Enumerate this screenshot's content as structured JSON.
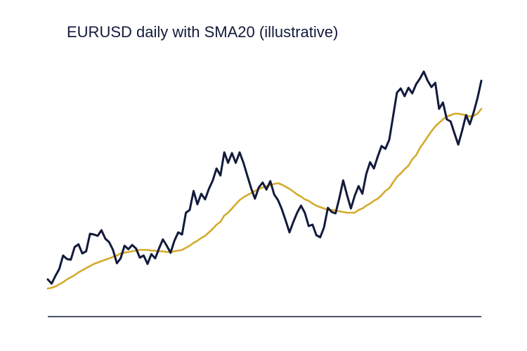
{
  "chart_data": {
    "type": "line",
    "title": "EURUSD daily with SMA20 (illustrative)",
    "ylim": [
      0,
      360
    ],
    "series": [
      {
        "name": "EURUSD",
        "color": "#121a3c",
        "values": [
          53,
          47,
          58,
          68,
          87,
          82,
          81,
          99,
          103,
          90,
          93,
          118,
          117,
          115,
          123,
          111,
          106,
          95,
          76,
          83,
          101,
          96,
          102,
          97,
          84,
          87,
          75,
          89,
          83,
          97,
          110,
          101,
          91,
          108,
          120,
          117,
          148,
          152,
          179,
          160,
          175,
          167,
          182,
          194,
          211,
          201,
          234,
          219,
          233,
          219,
          234,
          219,
          201,
          183,
          168,
          184,
          191,
          181,
          193,
          174,
          166,
          153,
          137,
          120,
          135,
          148,
          158,
          148,
          129,
          131,
          116,
          113,
          127,
          155,
          149,
          147,
          169,
          194,
          173,
          154,
          172,
          186,
          175,
          203,
          220,
          211,
          228,
          243,
          239,
          252,
          285,
          319,
          325,
          314,
          326,
          318,
          331,
          339,
          349,
          336,
          327,
          333,
          296,
          305,
          281,
          278,
          261,
          245,
          265,
          287,
          274,
          291,
          311,
          336
        ]
      },
      {
        "name": "SMA20",
        "color": "#d4aa2c",
        "values": [
          40,
          41,
          43,
          46,
          49,
          53,
          56,
          59,
          63,
          66,
          69,
          72,
          75,
          77,
          79,
          81,
          83,
          85,
          87,
          90,
          91,
          92,
          93,
          94,
          95,
          95,
          95,
          94,
          94,
          93,
          93,
          92,
          92,
          93,
          94,
          95,
          98,
          101,
          105,
          108,
          112,
          115,
          120,
          125,
          131,
          135,
          144,
          148,
          154,
          160,
          166,
          170,
          173,
          176,
          179,
          182,
          184,
          186,
          187,
          189,
          190,
          188,
          185,
          182,
          178,
          174,
          171,
          167,
          165,
          161,
          158,
          156,
          154,
          152,
          152,
          151,
          150,
          149,
          148,
          148,
          148,
          152,
          154,
          158,
          161,
          165,
          168,
          173,
          179,
          183,
          191,
          199,
          204,
          210,
          215,
          224,
          230,
          240,
          248,
          256,
          264,
          271,
          276,
          281,
          285,
          287,
          289,
          289,
          288,
          287,
          285,
          286,
          289,
          296
        ]
      }
    ]
  }
}
